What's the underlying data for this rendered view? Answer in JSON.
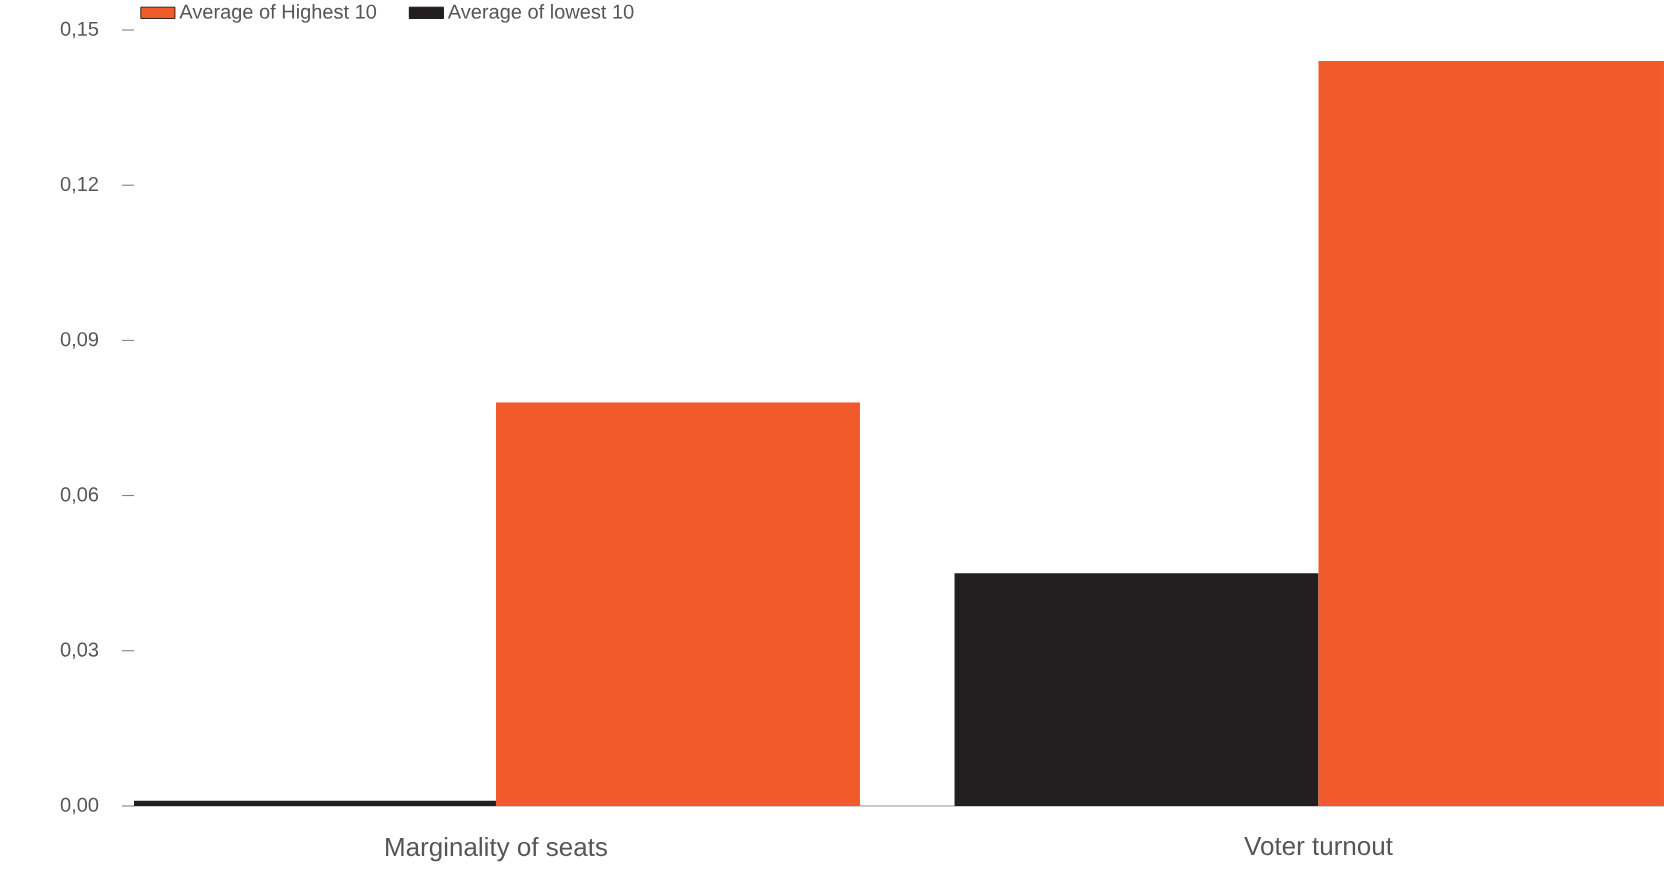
{
  "chart_data": {
    "type": "bar",
    "categories": [
      "Marginality of seats",
      "Voter turnout"
    ],
    "series": [
      {
        "name": "Average of lowest 10",
        "color": "#231f20",
        "values": [
          0.001,
          0.045
        ]
      },
      {
        "name": "Average of Highest 10",
        "color": "#f15a2b",
        "values": [
          0.078,
          0.144
        ]
      }
    ],
    "ylim": [
      0,
      0.15
    ],
    "yticks": [
      {
        "value": 0,
        "label": "0,00"
      },
      {
        "value": 0.03,
        "label": "0,03"
      },
      {
        "value": 0.06,
        "label": "0,06"
      },
      {
        "value": 0.09,
        "label": "0,09"
      },
      {
        "value": 0.12,
        "label": "0,12"
      },
      {
        "value": 0.15,
        "label": "0,15"
      }
    ],
    "legend": "top left",
    "grid": false
  }
}
